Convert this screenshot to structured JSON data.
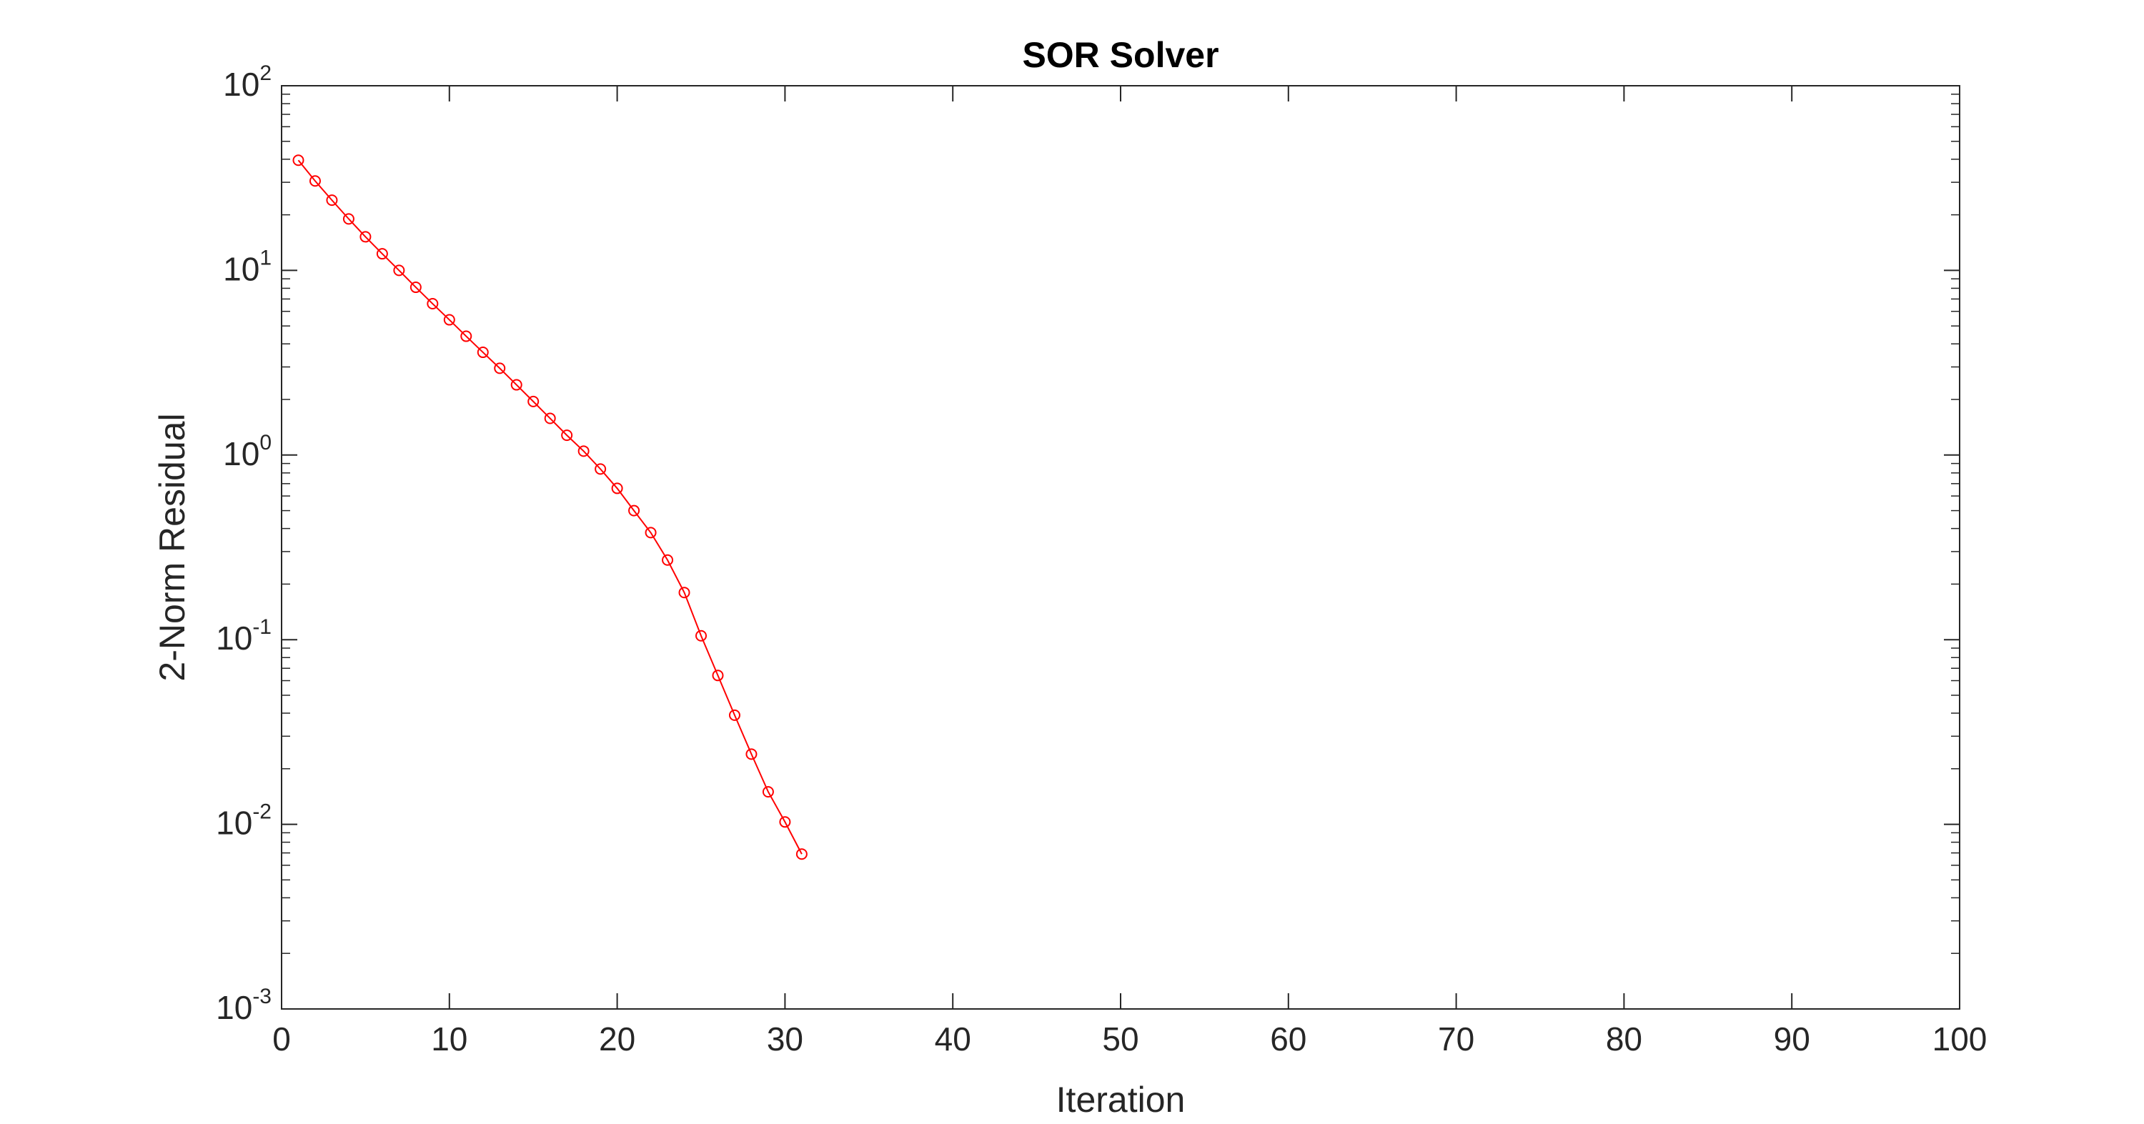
{
  "colors": {
    "series": "#ff0000",
    "axes": "#262626",
    "background": "#ffffff"
  },
  "chart_data": {
    "type": "line",
    "title": "SOR Solver",
    "xlabel": "Iteration",
    "ylabel": "2-Norm Residual",
    "xlim": [
      0,
      100
    ],
    "ylim": [
      0.001,
      100
    ],
    "yscale": "log",
    "grid": false,
    "legend": "none",
    "marker": "circle",
    "x_ticks": [
      "0",
      "10",
      "20",
      "30",
      "40",
      "50",
      "60",
      "70",
      "80",
      "90",
      "100"
    ],
    "y_ticks": [
      {
        "base": "10",
        "exp": "-3",
        "value": 0.001
      },
      {
        "base": "10",
        "exp": "-2",
        "value": 0.01
      },
      {
        "base": "10",
        "exp": "-1",
        "value": 0.1
      },
      {
        "base": "10",
        "exp": "0",
        "value": 1
      },
      {
        "base": "10",
        "exp": "1",
        "value": 10
      },
      {
        "base": "10",
        "exp": "2",
        "value": 100
      }
    ],
    "series": [
      {
        "x": [
          1,
          2,
          3,
          4,
          5,
          6,
          7,
          8,
          9,
          10,
          11,
          12,
          13,
          14,
          15,
          16,
          17,
          18,
          19,
          20,
          21,
          22,
          23,
          24,
          25,
          26,
          27,
          28,
          29,
          30,
          31
        ],
        "values": [
          39.5,
          30.5,
          24.0,
          19.0,
          15.2,
          12.3,
          10.0,
          8.1,
          6.6,
          5.4,
          4.4,
          3.6,
          2.95,
          2.4,
          1.95,
          1.58,
          1.28,
          1.05,
          0.84,
          0.66,
          0.5,
          0.38,
          0.27,
          0.18,
          0.105,
          0.064,
          0.039,
          0.024,
          0.015,
          0.0103,
          0.0069
        ]
      }
    ]
  }
}
